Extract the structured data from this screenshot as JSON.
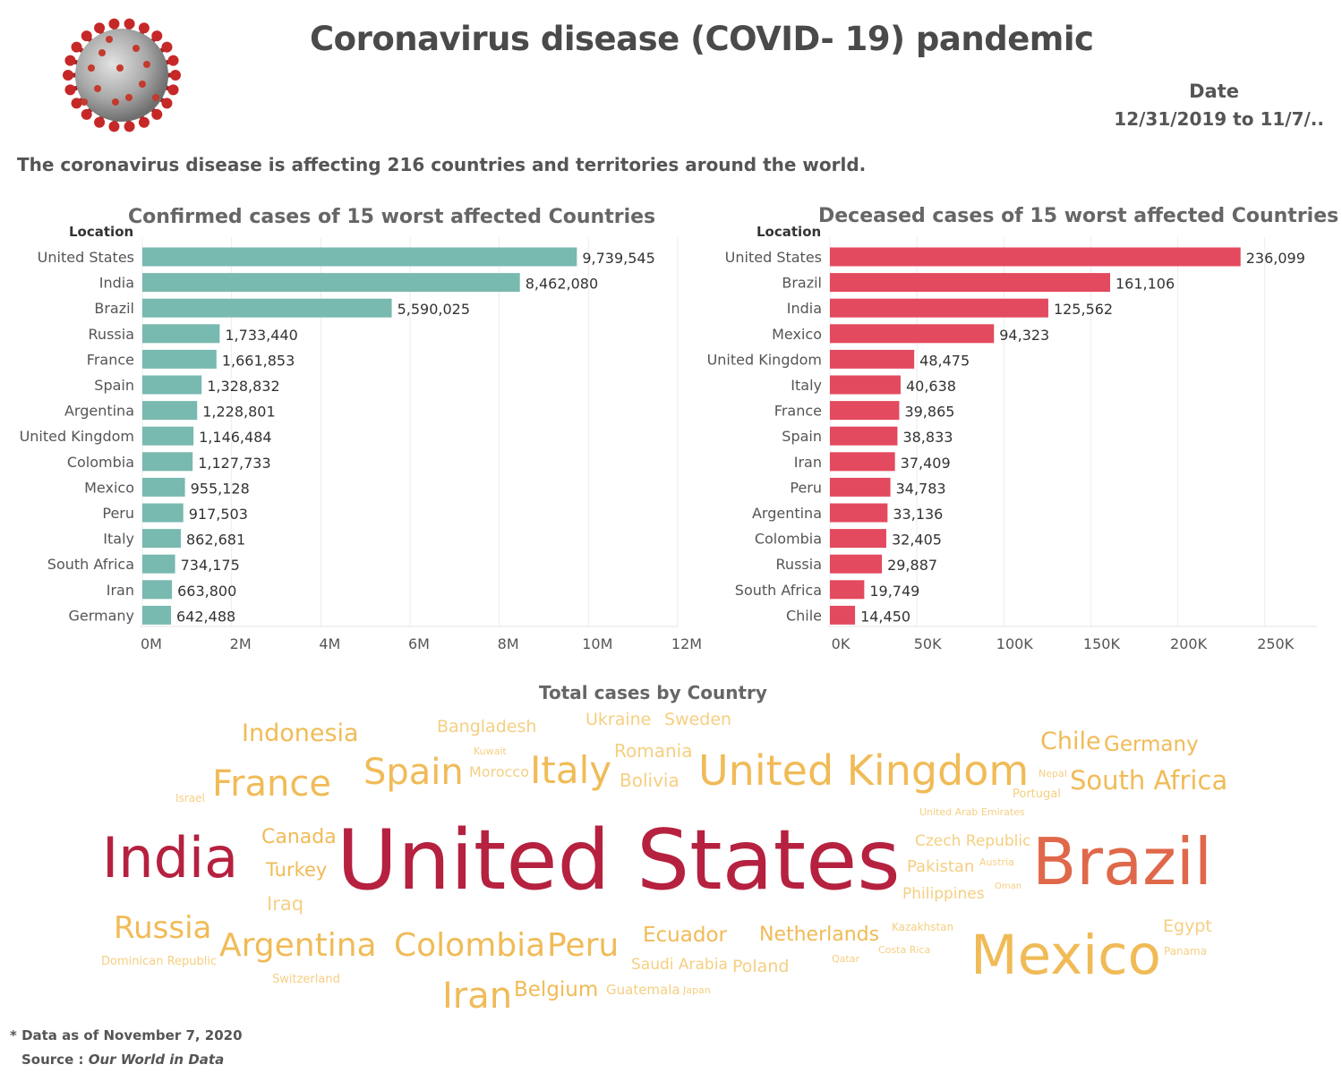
{
  "title": "Coronavirus disease (COVID- 19) pandemic",
  "date": {
    "label": "Date",
    "range": "12/31/2019 to 11/7/.."
  },
  "subtitle": "The coronavirus disease is affecting 216 countries and territories around the world.",
  "chart_data": [
    {
      "type": "bar",
      "orientation": "horizontal",
      "title": "Confirmed cases of 15 worst affected Countries",
      "ylabel": "Location",
      "color": "#78b9b0",
      "categories": [
        "United States",
        "India",
        "Brazil",
        "Russia",
        "France",
        "Spain",
        "Argentina",
        "United Kingdom",
        "Colombia",
        "Mexico",
        "Peru",
        "Italy",
        "South Africa",
        "Iran",
        "Germany"
      ],
      "values": [
        9739545,
        8462080,
        5590025,
        1733440,
        1661853,
        1328832,
        1228801,
        1146484,
        1127733,
        955128,
        917503,
        862681,
        734175,
        663800,
        642488
      ],
      "value_labels": [
        "9,739,545",
        "8,462,080",
        "5,590,025",
        "1,733,440",
        "1,661,853",
        "1,328,832",
        "1,228,801",
        "1,146,484",
        "1,127,733",
        "955,128",
        "917,503",
        "862,681",
        "734,175",
        "663,800",
        "642,488"
      ],
      "xlim": [
        0,
        12000000
      ],
      "ticks": [
        0,
        2000000,
        4000000,
        6000000,
        8000000,
        10000000,
        12000000
      ],
      "tick_labels": [
        "0M",
        "2M",
        "4M",
        "6M",
        "8M",
        "10M",
        "12M"
      ],
      "grid": true
    },
    {
      "type": "bar",
      "orientation": "horizontal",
      "title": "Deceased cases of 15 worst affected Countries",
      "ylabel": "Location",
      "color": "#e34a5f",
      "categories": [
        "United States",
        "Brazil",
        "India",
        "Mexico",
        "United Kingdom",
        "Italy",
        "France",
        "Spain",
        "Iran",
        "Peru",
        "Argentina",
        "Colombia",
        "Russia",
        "South Africa",
        "Chile"
      ],
      "values": [
        236099,
        161106,
        125562,
        94323,
        48475,
        40638,
        39865,
        38833,
        37409,
        34783,
        33136,
        32405,
        29887,
        19749,
        14450
      ],
      "value_labels": [
        "236,099",
        "161,106",
        "125,562",
        "94,323",
        "48,475",
        "40,638",
        "39,865",
        "38,833",
        "37,409",
        "34,783",
        "33,136",
        "32,405",
        "29,887",
        "19,749",
        "14,450"
      ],
      "xlim": [
        0,
        280000
      ],
      "ticks": [
        0,
        50000,
        100000,
        150000,
        200000,
        250000
      ],
      "tick_labels": [
        "0K",
        "50K",
        "100K",
        "150K",
        "200K",
        "250K"
      ],
      "grid": true
    }
  ],
  "word_cloud": {
    "title": "Total cases by Country",
    "colors": {
      "max": "#b5213f",
      "high": "#e0684a",
      "mid": "#f0bb57",
      "low": "#f5cf82"
    },
    "words": [
      "Indonesia",
      "Bangladesh",
      "Ukraine",
      "Sweden",
      "Kuwait",
      "Romania",
      "Chile",
      "Germany",
      "France",
      "Spain",
      "Morocco",
      "Italy",
      "Bolivia",
      "United Kingdom",
      "Nepal",
      "South Africa",
      "Israel",
      "Portugal",
      "United Arab Emirates",
      "Canada",
      "Czech Republic",
      "India",
      "United States",
      "Brazil",
      "Turkey",
      "Pakistan",
      "Austria",
      "Oman",
      "Philippines",
      "Iraq",
      "Russia",
      "Egypt",
      "Argentina",
      "Colombia",
      "Peru",
      "Ecuador",
      "Netherlands",
      "Kazakhstan",
      "Mexico",
      "Panama",
      "Dominican Republic",
      "Costa Rica",
      "Qatar",
      "Saudi Arabia",
      "Poland",
      "Switzerland",
      "Iran",
      "Belgium",
      "Guatemala",
      "Japan"
    ]
  },
  "footnote": "* Data as of November 7, 2020",
  "source": {
    "label": "Source : ",
    "name": "Our World in Data"
  }
}
